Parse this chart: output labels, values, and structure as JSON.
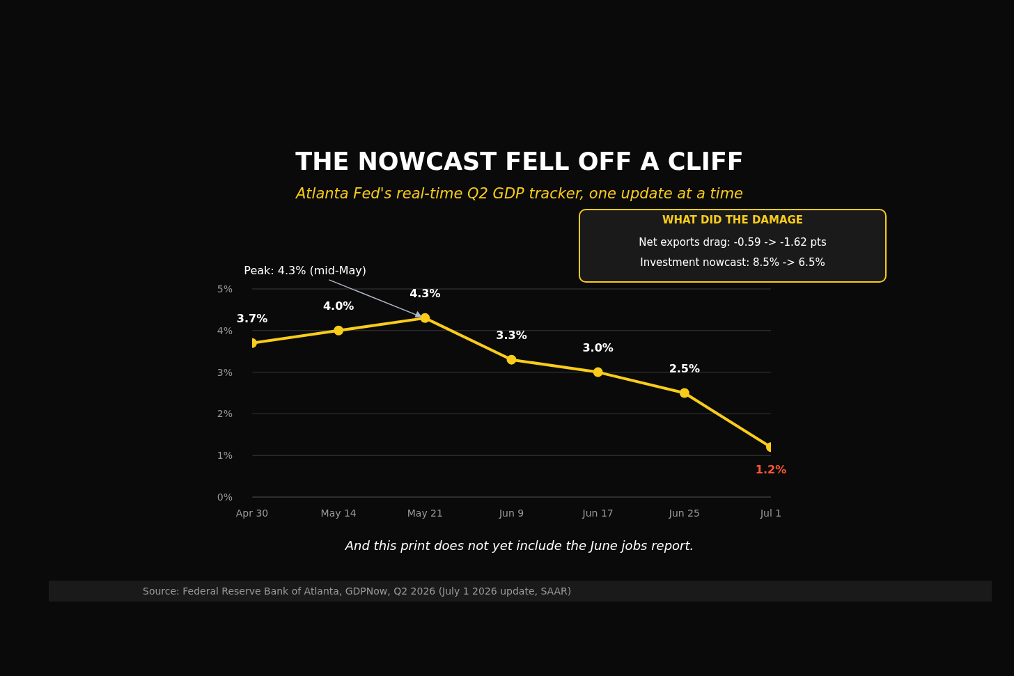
{
  "chart_data": {
    "type": "line",
    "title": "THE NOWCAST FELL OFF A CLIFF",
    "subtitle": "Atlanta Fed's real-time Q2 GDP tracker, one update at a time",
    "categories": [
      "Apr 30",
      "May 14",
      "May 21",
      "Jun 9",
      "Jun 17",
      "Jun 25",
      "Jul 1"
    ],
    "series": [
      {
        "color": "#f9cc1a",
        "values": [
          3.7,
          4.0,
          4.3,
          3.3,
          3.0,
          2.5,
          1.2
        ],
        "value_labels": [
          "3.7%",
          "4.0%",
          "4.3%",
          "3.3%",
          "3.0%",
          "2.5%",
          "1.2%"
        ]
      }
    ],
    "ylim": [
      0,
      5
    ],
    "yticks": [
      {
        "value": 0,
        "label": "0%"
      },
      {
        "value": 1,
        "label": "1%"
      },
      {
        "value": 2,
        "label": "2%"
      },
      {
        "value": 3,
        "label": "3%"
      },
      {
        "value": 4,
        "label": "4%"
      },
      {
        "value": 5,
        "label": "5%"
      }
    ],
    "grid": "y",
    "marker": "circle",
    "annotations": [
      {
        "text": "Peak: 4.3% (mid-May)",
        "x": "May 21",
        "y": 4.3
      },
      "WHAT DID THE DAMAGE",
      "Net exports drag: -0.59 -> -1.62 pts",
      "Investment nowcast: 8.5% -> 6.5%",
      "And this print does not yet include the June jobs report.",
      "Source: Federal Reserve Bank of Atlanta, GDPNow, Q2 2026 (July 1 2026 update, SAAR)"
    ]
  }
}
